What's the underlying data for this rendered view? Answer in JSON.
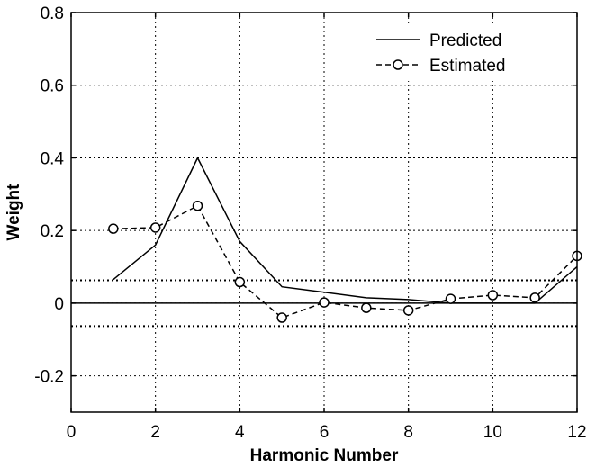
{
  "chart_data": {
    "type": "line",
    "xlabel": "Harmonic Number",
    "ylabel": "Weight",
    "xlim": [
      0,
      12
    ],
    "ylim": [
      -0.3,
      0.8
    ],
    "grid": true,
    "legend_position": "top-right",
    "x_ticks": [
      0,
      2,
      4,
      6,
      8,
      10,
      12
    ],
    "x_tick_labels": [
      "0",
      "2",
      "4",
      "6",
      "8",
      "10",
      "12"
    ],
    "y_ticks": [
      -0.2,
      0,
      0.2,
      0.4,
      0.6,
      0.8
    ],
    "y_tick_labels": [
      "-0.2",
      "0",
      "0.2",
      "0.4",
      "0.6",
      "0.8"
    ],
    "series": [
      {
        "name": "Predicted",
        "style": "solid",
        "marker": "none",
        "x": [
          1,
          2,
          3,
          4,
          5,
          6,
          7,
          8,
          9,
          10,
          11,
          12
        ],
        "y": [
          0.065,
          0.16,
          0.4,
          0.17,
          0.045,
          0.03,
          0.015,
          0.01,
          0.0,
          0.0,
          0.0,
          0.1
        ]
      },
      {
        "name": "Estimated",
        "style": "dashed",
        "marker": "circle",
        "x": [
          1,
          2,
          3,
          4,
          5,
          6,
          7,
          8,
          9,
          10,
          11,
          12
        ],
        "y": [
          0.205,
          0.208,
          0.268,
          0.058,
          -0.04,
          0.002,
          -0.013,
          -0.02,
          0.012,
          0.022,
          0.015,
          0.13
        ]
      }
    ],
    "reference_lines": [
      {
        "y": 0,
        "style": "solid"
      },
      {
        "y": 0.063,
        "style": "dotted"
      },
      {
        "y": -0.063,
        "style": "dotted"
      }
    ],
    "colors": {
      "line": "#000000",
      "grid": "#000000",
      "background": "#ffffff"
    }
  }
}
